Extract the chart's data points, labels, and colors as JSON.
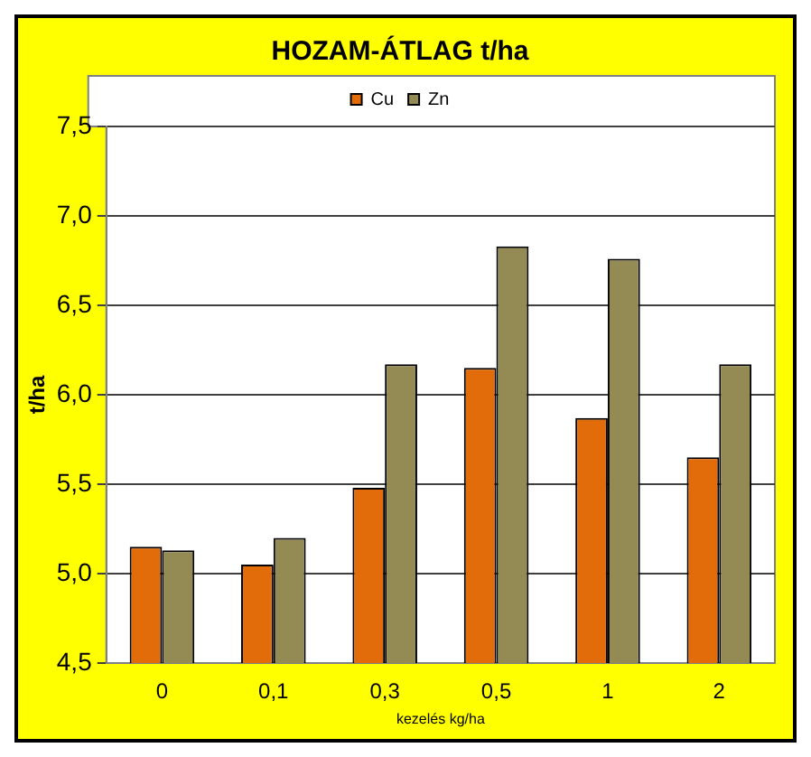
{
  "chart_data": {
    "type": "bar",
    "title": "HOZAM-ÁTLAG t/ha",
    "xlabel": "kezelés kg/ha",
    "ylabel": "t/ha",
    "categories": [
      "0",
      "0,1",
      "0,3",
      "0,5",
      "1",
      "2"
    ],
    "series": [
      {
        "name": "Cu",
        "color": "#e36c0a",
        "values": [
          5.15,
          5.05,
          5.48,
          6.15,
          5.87,
          5.65
        ]
      },
      {
        "name": "Zn",
        "color": "#948a54",
        "values": [
          5.13,
          5.2,
          6.17,
          6.83,
          6.76,
          6.17
        ]
      }
    ],
    "ylim": [
      4.5,
      7.5
    ],
    "yticks": [
      {
        "value": 4.5,
        "label": "4,5"
      },
      {
        "value": 5,
        "label": "5,0"
      },
      {
        "value": 5.5,
        "label": "5,5"
      },
      {
        "value": 6,
        "label": "6,0"
      },
      {
        "value": 6.5,
        "label": "6,5"
      },
      {
        "value": 7,
        "label": "7,0"
      },
      {
        "value": 7.5,
        "label": "7,5"
      }
    ],
    "grid": "y",
    "legend": "top"
  }
}
